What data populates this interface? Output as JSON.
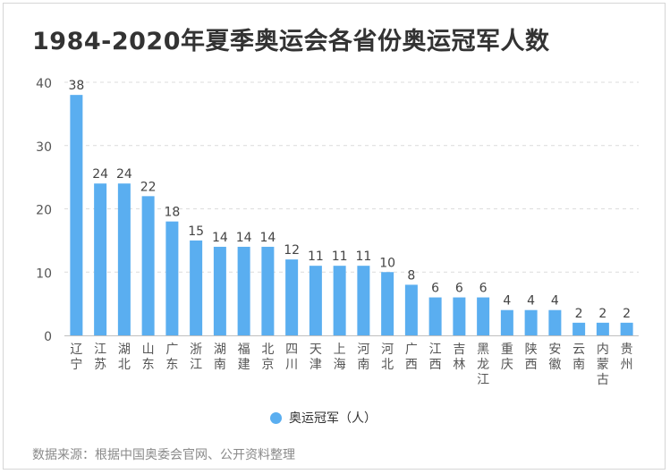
{
  "title": "1984-2020年夏季奥运会各省份奥运冠军人数",
  "source": "数据来源：根据中国奥委会官网、公开资料整理",
  "chart_data": {
    "type": "bar",
    "title": "1984-2020年夏季奥运会各省份奥运冠军人数",
    "xlabel": "",
    "ylabel": "",
    "ylim": [
      0,
      40
    ],
    "yticks": [
      0,
      10,
      20,
      30,
      40
    ],
    "grid": true,
    "legend_position": "bottom",
    "color": "#5AAEF0",
    "categories": [
      "辽宁",
      "江苏",
      "湖北",
      "山东",
      "广东",
      "浙江",
      "湖南",
      "福建",
      "北京",
      "四川",
      "天津",
      "上海",
      "河南",
      "河北",
      "广西",
      "江西",
      "吉林",
      "黑龙江",
      "重庆",
      "陕西",
      "安徽",
      "云南",
      "内蒙古",
      "贵州"
    ],
    "series": [
      {
        "name": "奥运冠军（人）",
        "values": [
          38,
          24,
          24,
          22,
          18,
          15,
          14,
          14,
          14,
          12,
          11,
          11,
          11,
          10,
          8,
          6,
          6,
          6,
          4,
          4,
          4,
          2,
          2,
          2
        ]
      }
    ]
  }
}
